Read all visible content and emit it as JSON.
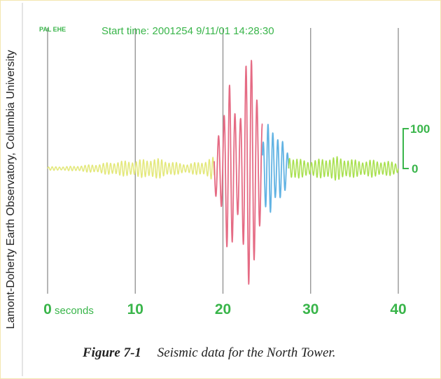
{
  "chart_data": {
    "type": "line",
    "title": "Start time: 2001254 9/11/01 14:28:30",
    "station_label": "PAL EHE",
    "x_unit_label": "seconds",
    "xlim": [
      0,
      40
    ],
    "x_ticks": [
      0,
      10,
      20,
      30,
      40
    ],
    "x_tick_labels": [
      "0",
      "10",
      "20",
      "30",
      "40"
    ],
    "y_scale_labels": [
      "100",
      "0"
    ],
    "y_scale_values": [
      100,
      0
    ],
    "ylim": [
      -325,
      325
    ],
    "grid": true,
    "series": [
      {
        "color": "#e3e87a",
        "x": [
          0,
          1,
          2,
          3,
          4,
          5,
          6,
          7,
          8,
          9,
          10,
          11,
          12,
          13,
          14,
          15,
          16,
          17,
          18,
          19
        ],
        "amplitude": [
          4,
          5,
          5,
          6,
          8,
          10,
          12,
          16,
          18,
          20,
          20,
          24,
          26,
          24,
          18,
          14,
          12,
          16,
          20,
          30
        ]
      },
      {
        "color": "#e56b84",
        "x": [
          19,
          19.5,
          20,
          20.5,
          21,
          21.5,
          22,
          22.5,
          23,
          23.5,
          24,
          24.5
        ],
        "amplitude": [
          60,
          110,
          150,
          220,
          200,
          160,
          170,
          250,
          300,
          320,
          220,
          120
        ]
      },
      {
        "color": "#62b3e3",
        "x": [
          24.5,
          25,
          25.5,
          26,
          26.5,
          27,
          27.5
        ],
        "amplitude": [
          60,
          110,
          140,
          100,
          80,
          60,
          40
        ]
      },
      {
        "color": "#a8e04e",
        "x": [
          27.5,
          28,
          29,
          30,
          31,
          32,
          33,
          34,
          35,
          36,
          37,
          38,
          39,
          40
        ],
        "amplitude": [
          35,
          30,
          22,
          20,
          24,
          28,
          30,
          26,
          22,
          20,
          22,
          20,
          18,
          14
        ]
      }
    ]
  },
  "credit": "Lamont-Doherty Earth Observatory, Columbia University",
  "caption": {
    "figure_label": "Figure 7-1",
    "text": "Seismic data for the North Tower."
  }
}
